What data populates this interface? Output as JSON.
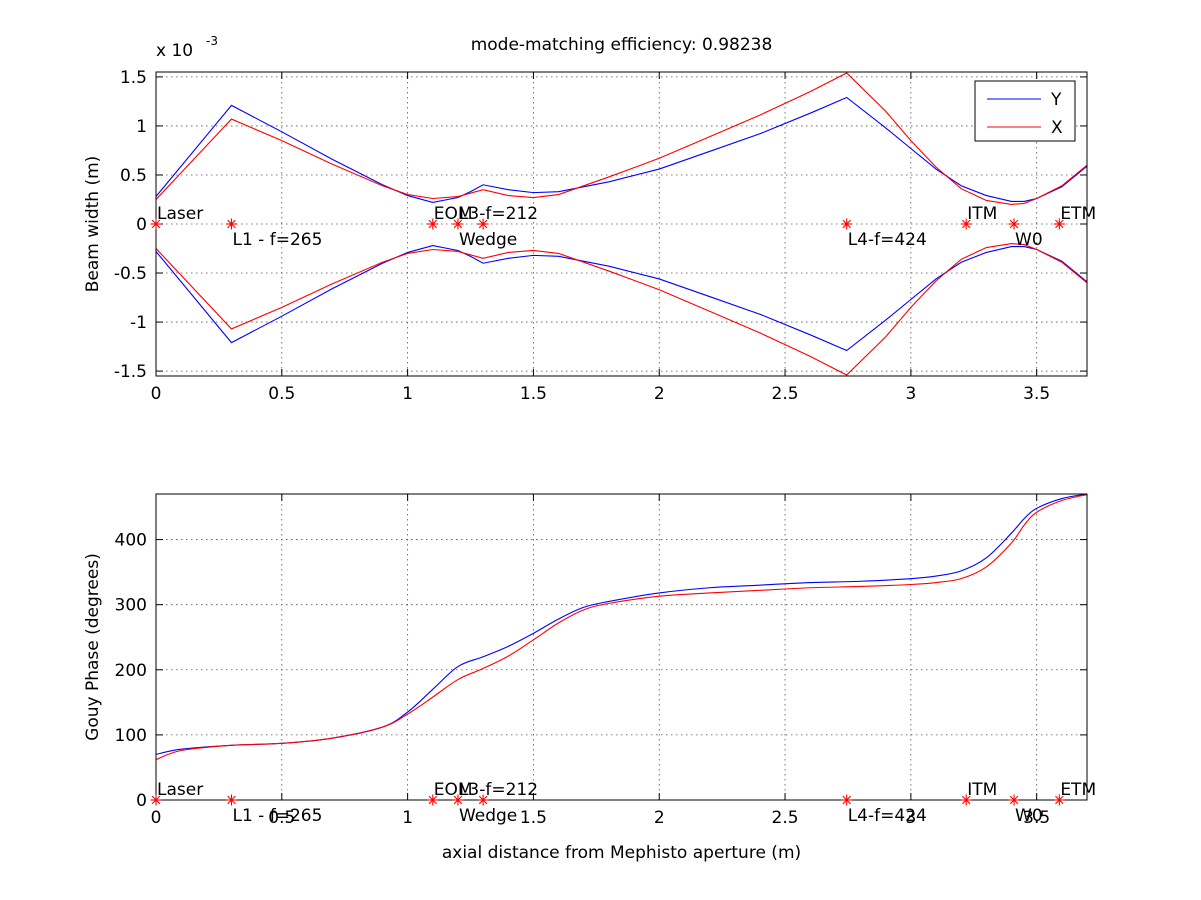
{
  "chart_data": [
    {
      "type": "line",
      "title": "mode-matching efficiency: 0.98238",
      "xlabel": "",
      "ylabel": "Beam width (m)",
      "xlim": [
        0,
        3.7
      ],
      "ylim": [
        -1.55,
        1.55
      ],
      "y_exponent_label": "x 10",
      "y_exponent_power": "-3",
      "grid": true,
      "legend_position": "top-right",
      "xtick_labels": [
        "0",
        "0.5",
        "1",
        "1.5",
        "2",
        "2.5",
        "3",
        "3.5"
      ],
      "xticks": [
        0,
        0.5,
        1,
        1.5,
        2,
        2.5,
        3,
        3.5
      ],
      "ytick_labels": [
        "-1.5",
        "-1",
        "-0.5",
        "0",
        "0.5",
        "1",
        "1.5"
      ],
      "yticks": [
        -1.5,
        -1,
        -0.5,
        0,
        0.5,
        1,
        1.5
      ],
      "series": [
        {
          "name": "Y",
          "color": "#0000ff",
          "mirror": true,
          "x": [
            0,
            0.3,
            0.5,
            0.7,
            0.9,
            1.0,
            1.1,
            1.2,
            1.25,
            1.3,
            1.4,
            1.5,
            1.6,
            1.8,
            2.0,
            2.2,
            2.4,
            2.6,
            2.745,
            2.9,
            3.0,
            3.1,
            3.2,
            3.3,
            3.4,
            3.45,
            3.5,
            3.6,
            3.7
          ],
          "y": [
            0.28,
            1.21,
            0.94,
            0.66,
            0.4,
            0.29,
            0.22,
            0.27,
            0.33,
            0.4,
            0.35,
            0.32,
            0.33,
            0.43,
            0.56,
            0.74,
            0.92,
            1.13,
            1.29,
            0.98,
            0.77,
            0.56,
            0.39,
            0.29,
            0.23,
            0.23,
            0.26,
            0.38,
            0.59
          ]
        },
        {
          "name": "X",
          "color": "#ff0000",
          "mirror": true,
          "x": [
            0,
            0.3,
            0.5,
            0.7,
            0.9,
            1.0,
            1.1,
            1.2,
            1.3,
            1.4,
            1.5,
            1.6,
            1.8,
            2.0,
            2.2,
            2.4,
            2.6,
            2.745,
            2.9,
            3.0,
            3.1,
            3.2,
            3.3,
            3.4,
            3.45,
            3.5,
            3.6,
            3.7
          ],
          "y": [
            0.25,
            1.07,
            0.85,
            0.61,
            0.39,
            0.3,
            0.26,
            0.28,
            0.35,
            0.29,
            0.27,
            0.3,
            0.48,
            0.67,
            0.89,
            1.11,
            1.35,
            1.54,
            1.15,
            0.85,
            0.58,
            0.36,
            0.24,
            0.2,
            0.21,
            0.26,
            0.39,
            0.6
          ]
        }
      ],
      "component_markers": {
        "color": "#ff0000",
        "y": 0,
        "x": [
          0,
          0.3,
          1.1,
          1.2,
          1.3,
          2.745,
          3.22,
          3.41,
          3.59
        ],
        "labels": [
          {
            "text": "Laser",
            "x": 0,
            "below": false
          },
          {
            "text": "L1 - f=265",
            "x": 0.3,
            "below": true
          },
          {
            "text": "EOM",
            "x": 1.1,
            "below": false
          },
          {
            "text": "L3-f=212",
            "x": 1.2,
            "below": false
          },
          {
            "text": "Wedge",
            "x": 1.2,
            "below": true
          },
          {
            "text": "L4-f=424",
            "x": 2.745,
            "below": true
          },
          {
            "text": "ITM",
            "x": 3.22,
            "below": false
          },
          {
            "text": "W0",
            "x": 3.41,
            "below": true
          },
          {
            "text": "ETM",
            "x": 3.59,
            "below": false
          }
        ]
      }
    },
    {
      "type": "line",
      "title": "",
      "xlabel": "axial distance from Mephisto aperture (m)",
      "ylabel": "Gouy Phase (degrees)",
      "xlim": [
        0,
        3.7
      ],
      "ylim": [
        0,
        470
      ],
      "grid": true,
      "xtick_labels": [
        "0",
        "0.5",
        "1",
        "1.5",
        "2",
        "2.5",
        "3",
        "3.5"
      ],
      "xticks": [
        0,
        0.5,
        1,
        1.5,
        2,
        2.5,
        3,
        3.5
      ],
      "ytick_labels": [
        "0",
        "100",
        "200",
        "300",
        "400"
      ],
      "yticks": [
        0,
        100,
        200,
        300,
        400
      ],
      "series": [
        {
          "name": "",
          "color": "#0000ff",
          "mirror": false,
          "x": [
            0,
            0.1,
            0.3,
            0.5,
            0.7,
            0.9,
            1.0,
            1.1,
            1.2,
            1.3,
            1.4,
            1.5,
            1.6,
            1.7,
            1.8,
            2.0,
            2.2,
            2.4,
            2.6,
            2.8,
            3.0,
            3.1,
            3.2,
            3.3,
            3.4,
            3.45,
            3.5,
            3.6,
            3.7
          ],
          "y": [
            70,
            78,
            84,
            87,
            95,
            112,
            135,
            170,
            205,
            220,
            236,
            256,
            278,
            296,
            305,
            318,
            326,
            330,
            334,
            336,
            340,
            344,
            352,
            372,
            410,
            432,
            448,
            463,
            470
          ],
          "smooth": true
        },
        {
          "name": "",
          "color": "#ff0000",
          "mirror": false,
          "x": [
            0,
            0.1,
            0.3,
            0.5,
            0.7,
            0.9,
            1.0,
            1.1,
            1.2,
            1.3,
            1.4,
            1.5,
            1.6,
            1.7,
            1.8,
            2.0,
            2.2,
            2.4,
            2.6,
            2.8,
            3.0,
            3.1,
            3.2,
            3.3,
            3.4,
            3.45,
            3.5,
            3.6,
            3.7
          ],
          "y": [
            62,
            76,
            84,
            87,
            95,
            112,
            132,
            158,
            185,
            202,
            221,
            246,
            272,
            292,
            302,
            313,
            318,
            322,
            326,
            328,
            331,
            334,
            340,
            358,
            395,
            422,
            442,
            460,
            469
          ],
          "smooth": true
        }
      ],
      "component_markers": {
        "color": "#ff0000",
        "y": 0,
        "x": [
          0,
          0.3,
          1.1,
          1.2,
          1.3,
          2.745,
          3.22,
          3.41,
          3.59
        ],
        "labels": [
          {
            "text": "Laser",
            "x": 0,
            "below": false
          },
          {
            "text": "L1 - f=265",
            "x": 0.3,
            "below": true
          },
          {
            "text": "EOM",
            "x": 1.1,
            "below": false
          },
          {
            "text": "L3-f=212",
            "x": 1.2,
            "below": false
          },
          {
            "text": "Wedge",
            "x": 1.2,
            "below": true
          },
          {
            "text": "L4-f=424",
            "x": 2.745,
            "below": true
          },
          {
            "text": "ITM",
            "x": 3.22,
            "below": false
          },
          {
            "text": "W0",
            "x": 3.41,
            "below": true
          },
          {
            "text": "ETM",
            "x": 3.59,
            "below": false
          }
        ]
      }
    }
  ]
}
